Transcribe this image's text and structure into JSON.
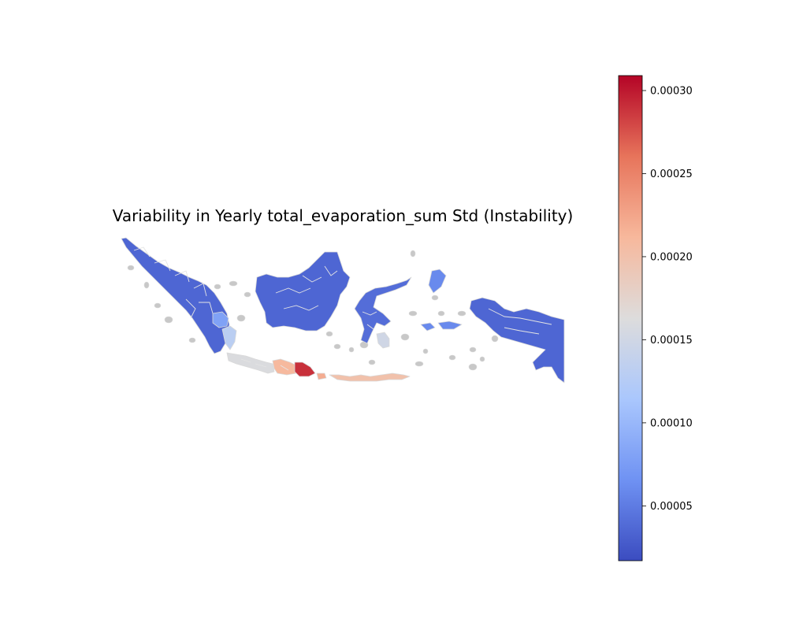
{
  "figure": {
    "title": "Variability in Yearly total_evaporation_sum Std (Instability)"
  },
  "colorbar": {
    "colormap": "coolwarm",
    "vmin": 1.7e-05,
    "vmax": 0.000309,
    "ticks": [
      "0.00005",
      "0.00010",
      "0.00015",
      "0.00020",
      "0.00025",
      "0.00030"
    ],
    "tick_values": [
      5e-05,
      0.0001,
      0.00015,
      0.0002,
      0.00025,
      0.0003
    ],
    "stops": [
      "#3b4cc0",
      "#6f92f3",
      "#aac7fd",
      "#dddcdc",
      "#f7b89c",
      "#e7745b",
      "#b40426"
    ]
  },
  "map": {
    "region_edge_color": "#d9d9d9",
    "missing_color": "#c8c8c8",
    "regions": [
      {
        "name": "Sumatra",
        "value": 3.5e-05
      },
      {
        "name": "Bangka Belitung",
        "value": 8e-05
      },
      {
        "name": "Lampung",
        "value": 0.00013
      },
      {
        "name": "Java",
        "value": 0.00016
      },
      {
        "name": "Central Java",
        "value": 0.00021
      },
      {
        "name": "East Java",
        "value": 0.00029
      },
      {
        "name": "Bali",
        "value": 0.00022
      },
      {
        "name": "Lesser Sunda Islands",
        "value": 0.0002
      },
      {
        "name": "Kalimantan",
        "value": 3.5e-05
      },
      {
        "name": "Sulawesi",
        "value": 4e-05
      },
      {
        "name": "Southeast Sulawesi",
        "value": 0.00015
      },
      {
        "name": "Maluku",
        "value": 6e-05
      },
      {
        "name": "Papua",
        "value": 3.5e-05
      }
    ]
  }
}
